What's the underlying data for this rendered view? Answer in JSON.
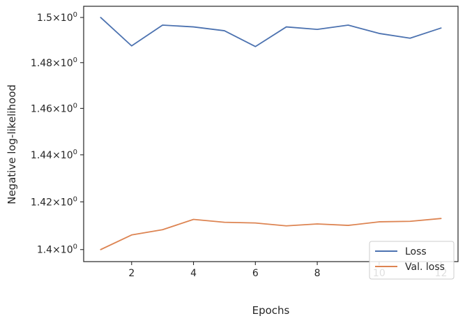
{
  "chart_data": {
    "type": "line",
    "xlabel": "Epochs",
    "ylabel": "Negative log-likelihood",
    "x": [
      1,
      2,
      3,
      4,
      5,
      6,
      7,
      8,
      9,
      10,
      11,
      12
    ],
    "series": [
      {
        "name": "Loss",
        "color": "#4c72b0",
        "values": [
          1.5,
          1.4874,
          1.4966,
          1.4958,
          1.4941,
          1.4871,
          1.4958,
          1.4947,
          1.4966,
          1.4929,
          1.4908,
          1.4953
        ]
      },
      {
        "name": "Val. loss",
        "color": "#dd8452",
        "values": [
          1.4,
          1.4061,
          1.4083,
          1.4126,
          1.4114,
          1.4111,
          1.4099,
          1.4107,
          1.4101,
          1.4116,
          1.4118,
          1.413
        ]
      }
    ],
    "xlim": [
      0.45,
      12.55
    ],
    "ylim": [
      1.395,
      1.505
    ],
    "x_ticks": [
      "2",
      "4",
      "6",
      "8",
      "10",
      "12"
    ],
    "x_tick_values": [
      2,
      4,
      6,
      8,
      10,
      12
    ],
    "y_tick_values": [
      1.4,
      1.42,
      1.44,
      1.46,
      1.48,
      1.5
    ],
    "y_ticks": [
      {
        "mantissa": "1.4",
        "exp": "0"
      },
      {
        "mantissa": "1.42",
        "exp": "0"
      },
      {
        "mantissa": "1.44",
        "exp": "0"
      },
      {
        "mantissa": "1.46",
        "exp": "0"
      },
      {
        "mantissa": "1.48",
        "exp": "0"
      },
      {
        "mantissa": "1.5",
        "exp": "0"
      }
    ],
    "y_scale": "log",
    "grid": false,
    "legend_position": "lower-right"
  }
}
